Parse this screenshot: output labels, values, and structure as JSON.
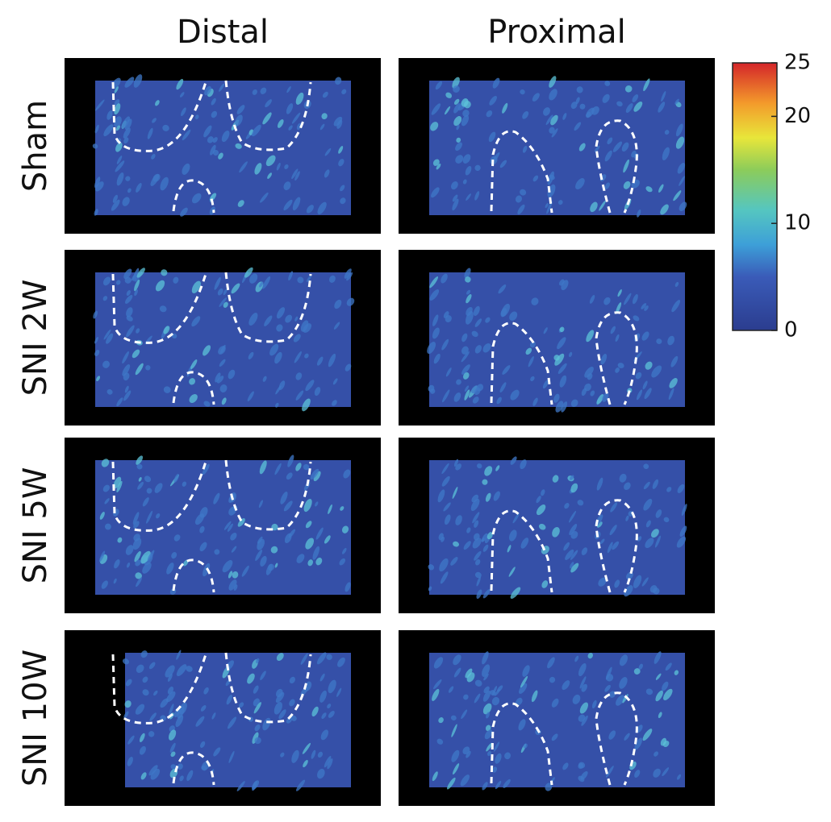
{
  "columns": [
    "Distal",
    "Proximal"
  ],
  "rows": [
    "Sham",
    "SNI 2W",
    "SNI 5W",
    "SNI 10W"
  ],
  "colorbar": {
    "lim": [
      0,
      25
    ],
    "ticks": [
      0,
      10,
      20,
      25
    ]
  }
}
